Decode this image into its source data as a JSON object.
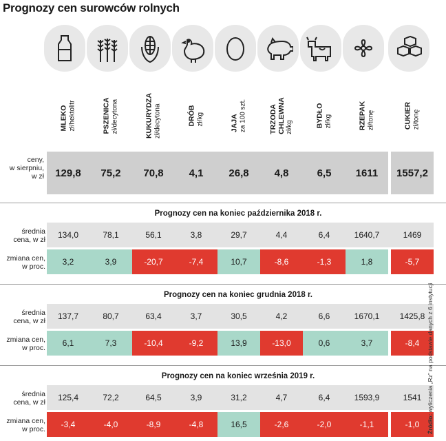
{
  "title": "Prognozy cen surowców rolnych",
  "products": [
    {
      "name": "MLEKO",
      "unit": "zł/hektolitr",
      "icon": "milk-bottle-icon"
    },
    {
      "name": "PSZENICA",
      "unit": "zł/decytona",
      "icon": "wheat-icon"
    },
    {
      "name": "KUKURYDZA",
      "unit": "zł/decytona",
      "icon": "corn-icon"
    },
    {
      "name": "DRÓB",
      "unit": "zł/kg",
      "icon": "chicken-icon"
    },
    {
      "name": "JAJA",
      "unit": "za 100 szt.",
      "icon": "egg-icon"
    },
    {
      "name": "TRZODA",
      "name2": "CHLEWNA",
      "unit": "zł/kg",
      "icon": "pig-icon"
    },
    {
      "name": "BYDŁO",
      "unit": "zł/kg",
      "icon": "cow-icon"
    },
    {
      "name": "RZEPAK",
      "unit": "zł/tonę",
      "icon": "rapeseed-flower-icon"
    },
    {
      "name": "CUKIER",
      "unit": "zł/tonę",
      "icon": "sugar-cubes-icon"
    }
  ],
  "current": {
    "label": "ceny, w sierpniu, w zł",
    "label_lines": [
      "ceny,",
      "w sierpniu,",
      "w zł"
    ],
    "values": [
      "129,8",
      "75,2",
      "70,8",
      "4,1",
      "26,8",
      "4,8",
      "6,5",
      "1611",
      "1557,2"
    ]
  },
  "avg_label_lines": [
    "średnia",
    "cena, w zł"
  ],
  "chg_label_lines": [
    "zmiana cen,",
    "w proc."
  ],
  "forecasts": [
    {
      "title": "Prognozy cen na koniec października 2018 r.",
      "avg": [
        "134,0",
        "78,1",
        "56,1",
        "3,8",
        "29,7",
        "4,4",
        "6,4",
        "1640,7",
        "1469"
      ],
      "chg": [
        "3,2",
        "3,9",
        "-20,7",
        "-7,4",
        "10,7",
        "-8,6",
        "-1,3",
        "1,8",
        "-5,7"
      ]
    },
    {
      "title": "Prognozy cen na koniec grudnia 2018 r.",
      "avg": [
        "137,7",
        "80,7",
        "63,4",
        "3,7",
        "30,5",
        "4,2",
        "6,6",
        "1670,1",
        "1425,8"
      ],
      "chg": [
        "6,1",
        "7,3",
        "-10,4",
        "-9,2",
        "13,9",
        "-13,0",
        "0,6",
        "3,7",
        "-8,4"
      ]
    },
    {
      "title": "Prognozy cen na koniec września 2019 r.",
      "avg": [
        "125,4",
        "72,2",
        "64,5",
        "3,9",
        "31,2",
        "4,7",
        "6,4",
        "1593,9",
        "1541"
      ],
      "chg": [
        "-3,4",
        "-4,0",
        "-8,9",
        "-4,8",
        "16,5",
        "-2,6",
        "-2,0",
        "-1,1",
        "-1,0"
      ]
    }
  ],
  "source": {
    "prefix": "Źródło:",
    "text": "wyliczenia „Rz” na podstawie danych z 6 instytucji"
  },
  "colors": {
    "positive": "#a9d8c9",
    "negative": "#e03a2f",
    "price": "#cfcfcf",
    "band": "#e3e3e3"
  }
}
